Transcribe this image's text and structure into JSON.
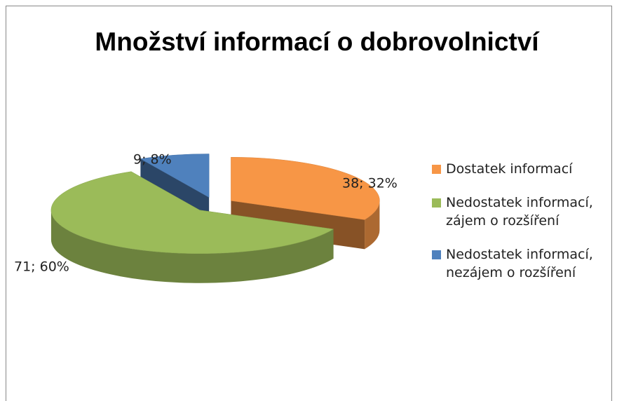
{
  "chart_data": {
    "type": "pie",
    "title": "Množství informací o dobrovolnictví",
    "categories": [
      "Dostatek informací",
      "Nedostatek informací, zájem o rozšíření",
      "Nedostatek informací, nezájem o rozšíření"
    ],
    "values": [
      38,
      71,
      9
    ],
    "value_labels": [
      "38; 32%",
      "71; 60%",
      "9; 8%"
    ],
    "colors": [
      "#f79646",
      "#9bbb59",
      "#4f81bd"
    ],
    "legend": "right"
  }
}
